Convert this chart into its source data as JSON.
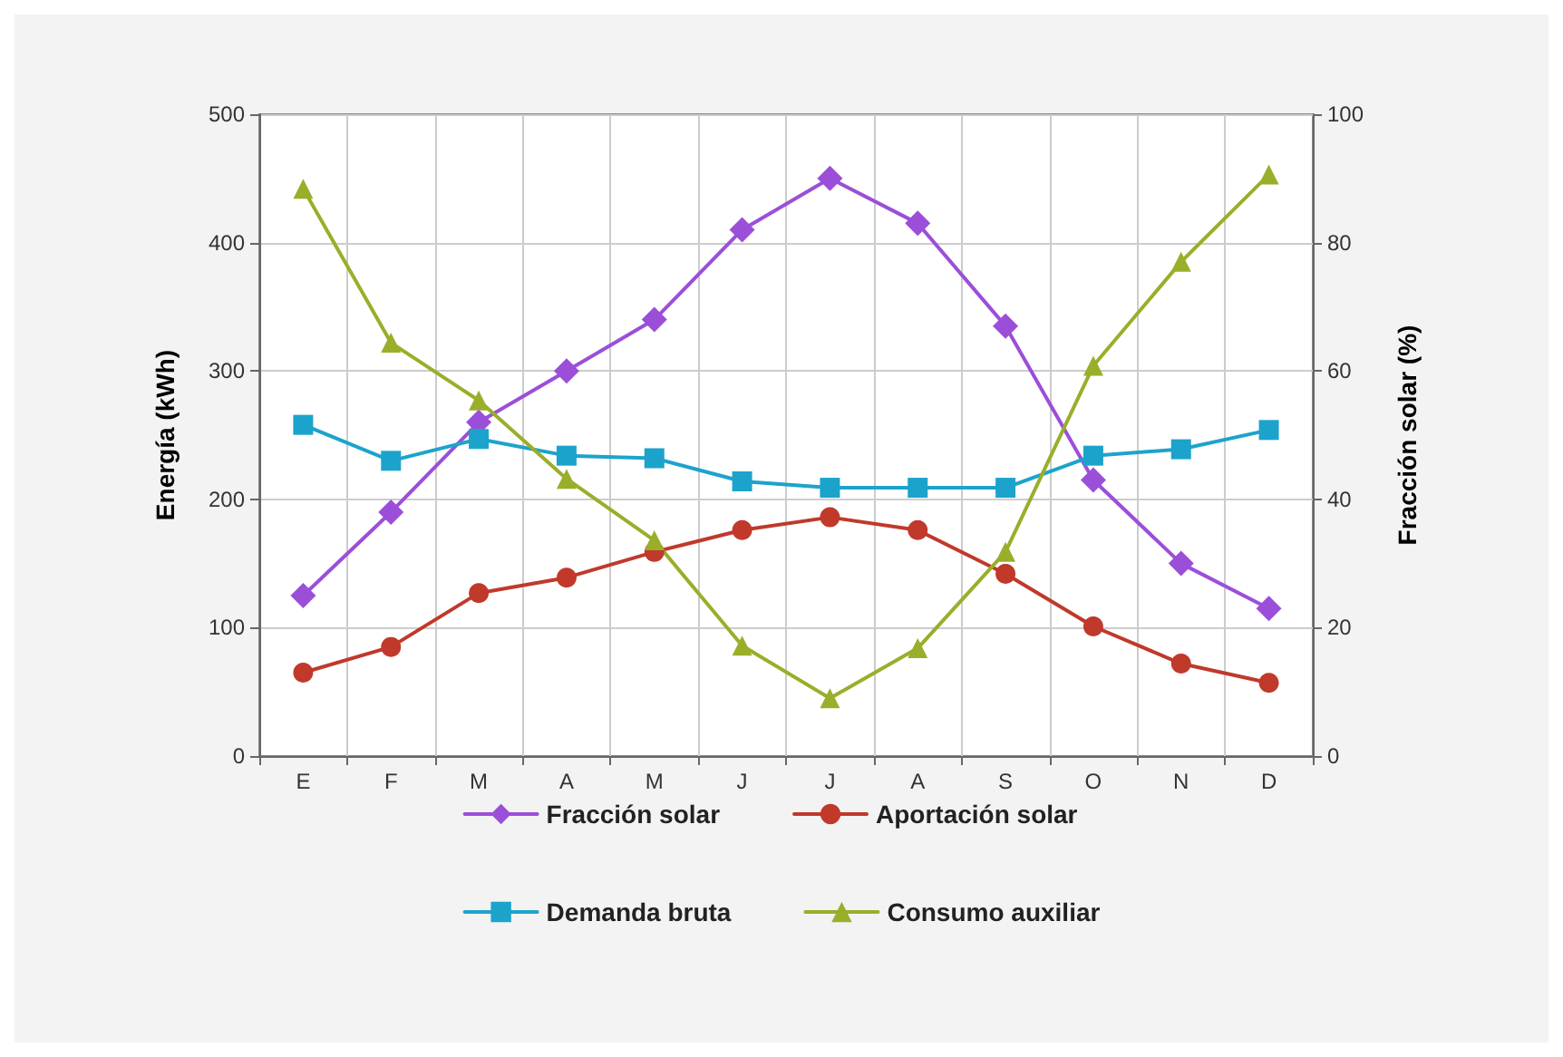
{
  "chart_data": {
    "type": "line",
    "ylabel": "Energía (kWh)",
    "y2label": "Fracción solar (%)",
    "categories": [
      "E",
      "F",
      "M",
      "A",
      "M",
      "J",
      "J",
      "A",
      "S",
      "O",
      "N",
      "D"
    ],
    "ylim": [
      0,
      500
    ],
    "yticks": [
      0,
      100,
      200,
      300,
      400,
      500
    ],
    "y2lim": [
      0,
      100
    ],
    "y2ticks": [
      0,
      20,
      40,
      60,
      80,
      100
    ],
    "grid": true,
    "legend": "bottom",
    "line_style": "solid",
    "series": [
      {
        "name": "Fracción solar",
        "color": "#9b4fd8",
        "marker": "diamond",
        "axis": "y2",
        "values": [
          25,
          38,
          52,
          60,
          68,
          82,
          90,
          83,
          67,
          43,
          30,
          23
        ]
      },
      {
        "name": "Aportación solar",
        "color": "#c0392b",
        "marker": "circle",
        "values": [
          65,
          85,
          127,
          139,
          159,
          176,
          186,
          176,
          142,
          101,
          72,
          57
        ]
      },
      {
        "name": "Demanda bruta",
        "color": "#1ca3cc",
        "marker": "square",
        "values": [
          258,
          230,
          247,
          234,
          232,
          214,
          209,
          209,
          209,
          234,
          239,
          254
        ]
      },
      {
        "name": "Consumo auxiliar",
        "color": "#9aae2a",
        "marker": "triangle",
        "values": [
          442,
          322,
          277,
          216,
          168,
          86,
          45,
          84,
          159,
          304,
          385,
          453
        ]
      }
    ]
  }
}
